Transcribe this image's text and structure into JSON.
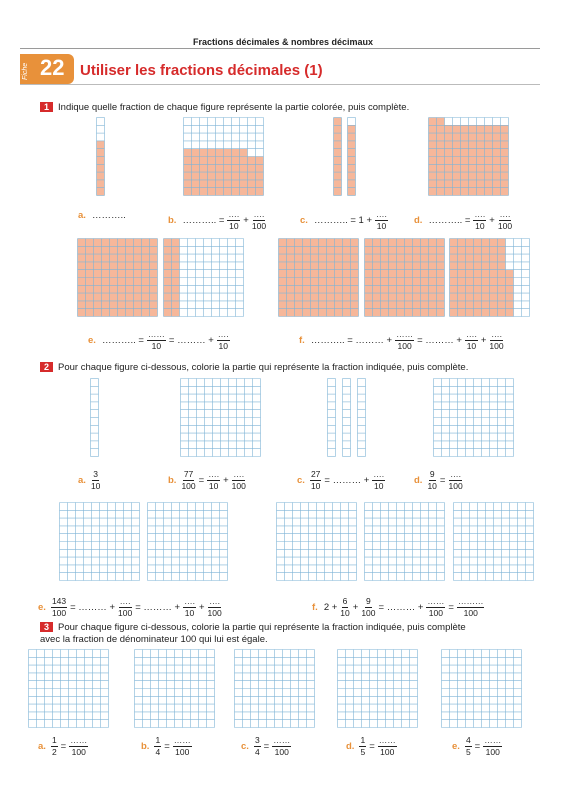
{
  "header": {
    "doc_title": "Fractions décimales & nombres décimaux",
    "fiche_word": "Fiche",
    "fiche_number": "22",
    "title": "Utiliser les fractions décimales (1)"
  },
  "colors": {
    "accent": "#e8913a",
    "red": "#d62b2b",
    "cell_fill": "#f6b79a",
    "grid_line": "#7fb4d6"
  },
  "ex1": {
    "number": "1",
    "instruction": "Indique quelle fraction de chaque figure représente la partie colorée, puis complète.",
    "labels": [
      {
        "letter": "a.",
        "parts": [
          {
            "t": "……….."
          }
        ]
      },
      {
        "letter": "b.",
        "parts": [
          {
            "t": "……….. ="
          },
          {
            "n": "….",
            "d": "10"
          },
          {
            "t": "+"
          },
          {
            "n": "….",
            "d": "100"
          }
        ]
      },
      {
        "letter": "c.",
        "parts": [
          {
            "t": "……….. = 1 +"
          },
          {
            "n": "….",
            "d": "10"
          }
        ]
      },
      {
        "letter": "d.",
        "parts": [
          {
            "t": "……….. ="
          },
          {
            "n": "….",
            "d": "10"
          },
          {
            "t": "+"
          },
          {
            "n": "….",
            "d": "100"
          }
        ]
      },
      {
        "letter": "e.",
        "parts": [
          {
            "t": "……….. ="
          },
          {
            "n": "……",
            "d": "10"
          },
          {
            "t": "= ……… +"
          },
          {
            "n": "….",
            "d": "10"
          }
        ]
      },
      {
        "letter": "f.",
        "parts": [
          {
            "t": "……….. = ……… +"
          },
          {
            "n": "……",
            "d": "100"
          },
          {
            "t": "= ……… +"
          },
          {
            "n": "….",
            "d": "10"
          },
          {
            "t": "+"
          },
          {
            "n": "….",
            "d": "100"
          }
        ]
      }
    ]
  },
  "ex2": {
    "number": "2",
    "instruction": "Pour chaque figure ci-dessous, colorie la partie qui représente la fraction indiquée, puis complète.",
    "labels": [
      {
        "letter": "a.",
        "parts": [
          {
            "n": "3",
            "d": "10"
          }
        ]
      },
      {
        "letter": "b.",
        "parts": [
          {
            "n": "77",
            "d": "100"
          },
          {
            "t": "="
          },
          {
            "n": "….",
            "d": "10"
          },
          {
            "t": "+"
          },
          {
            "n": "….",
            "d": "100"
          }
        ]
      },
      {
        "letter": "c.",
        "parts": [
          {
            "n": "27",
            "d": "10"
          },
          {
            "t": "= ……… +"
          },
          {
            "n": "….",
            "d": "10"
          }
        ]
      },
      {
        "letter": "d.",
        "parts": [
          {
            "n": "9",
            "d": "10"
          },
          {
            "t": "="
          },
          {
            "n": "….",
            "d": "100"
          }
        ]
      },
      {
        "letter": "e.",
        "parts": [
          {
            "n": "143",
            "d": "100"
          },
          {
            "t": "= ……… +"
          },
          {
            "n": "….",
            "d": "100"
          },
          {
            "t": "= ……… +"
          },
          {
            "n": "….",
            "d": "10"
          },
          {
            "t": "+"
          },
          {
            "n": "….",
            "d": "100"
          }
        ]
      },
      {
        "letter": "f.",
        "parts": [
          {
            "t": "2 +"
          },
          {
            "n": "6",
            "d": "10"
          },
          {
            "t": "+"
          },
          {
            "n": "9",
            "d": "100"
          },
          {
            "t": "= ……… +"
          },
          {
            "n": "……",
            "d": "100"
          },
          {
            "t": "="
          },
          {
            "n": "………",
            "d": "100"
          }
        ]
      }
    ]
  },
  "ex3": {
    "number": "3",
    "instruction_line1": "Pour chaque figure ci-dessous, colorie la partie qui représente la fraction indiquée, puis complète",
    "instruction_line2": "avec la fraction de dénominateur 100 qui lui est égale.",
    "labels": [
      {
        "letter": "a.",
        "parts": [
          {
            "n": "1",
            "d": "2"
          },
          {
            "t": "="
          },
          {
            "n": "……",
            "d": "100"
          }
        ]
      },
      {
        "letter": "b.",
        "parts": [
          {
            "n": "1",
            "d": "4"
          },
          {
            "t": "="
          },
          {
            "n": "……",
            "d": "100"
          }
        ]
      },
      {
        "letter": "c.",
        "parts": [
          {
            "n": "3",
            "d": "4"
          },
          {
            "t": "="
          },
          {
            "n": "……",
            "d": "100"
          }
        ]
      },
      {
        "letter": "d.",
        "parts": [
          {
            "n": "1",
            "d": "5"
          },
          {
            "t": "="
          },
          {
            "n": "……",
            "d": "100"
          }
        ]
      },
      {
        "letter": "e.",
        "parts": [
          {
            "n": "4",
            "d": "5"
          },
          {
            "t": "="
          },
          {
            "n": "……",
            "d": "100"
          }
        ]
      }
    ]
  }
}
